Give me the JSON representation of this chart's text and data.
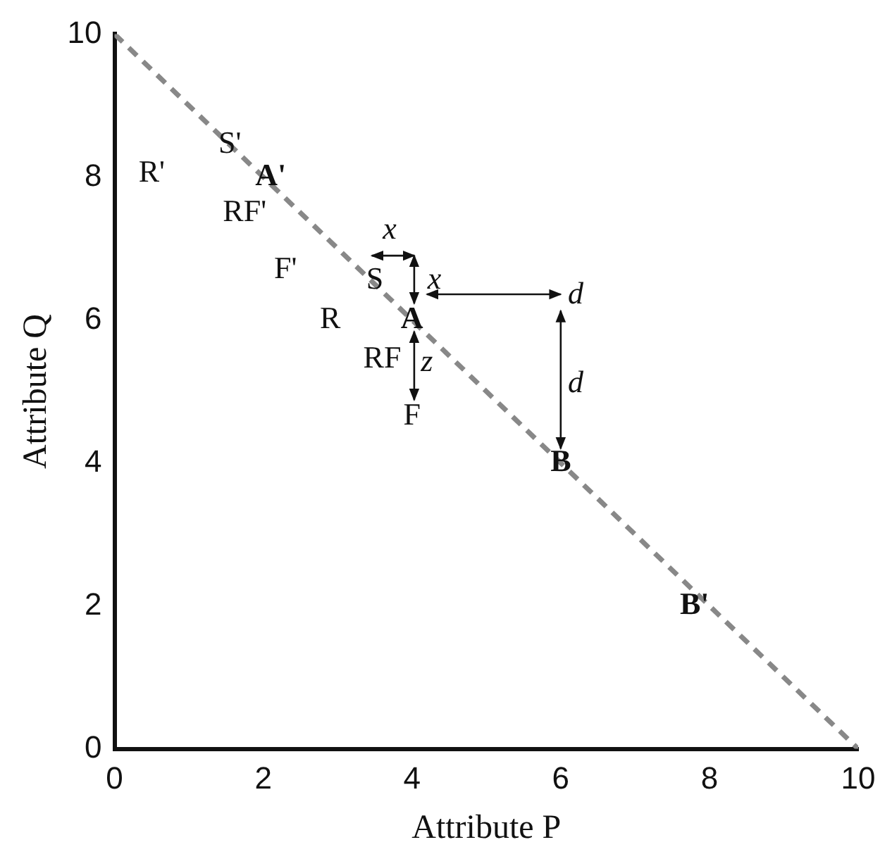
{
  "chart_data": {
    "type": "line",
    "xlabel": "Attribute P",
    "ylabel": "Attribute Q",
    "x": [
      0,
      10
    ],
    "series": [
      {
        "color": "#888888",
        "values": [
          10,
          0
        ],
        "line_style": "dashed",
        "marker": "none"
      }
    ],
    "xlim": [
      0,
      10
    ],
    "xticks": [
      0,
      2,
      4,
      6,
      8,
      10
    ],
    "ylim": [
      0,
      10
    ],
    "yticks": [
      0,
      2,
      4,
      6,
      8,
      10
    ],
    "grid": false,
    "legend": false,
    "annotations": [
      "A",
      "B",
      "A'",
      "B'",
      "S'",
      "R'",
      "RF'",
      "F'",
      "S",
      "R",
      "RF",
      "F",
      "x",
      "x",
      "z",
      "d",
      "d"
    ]
  }
}
